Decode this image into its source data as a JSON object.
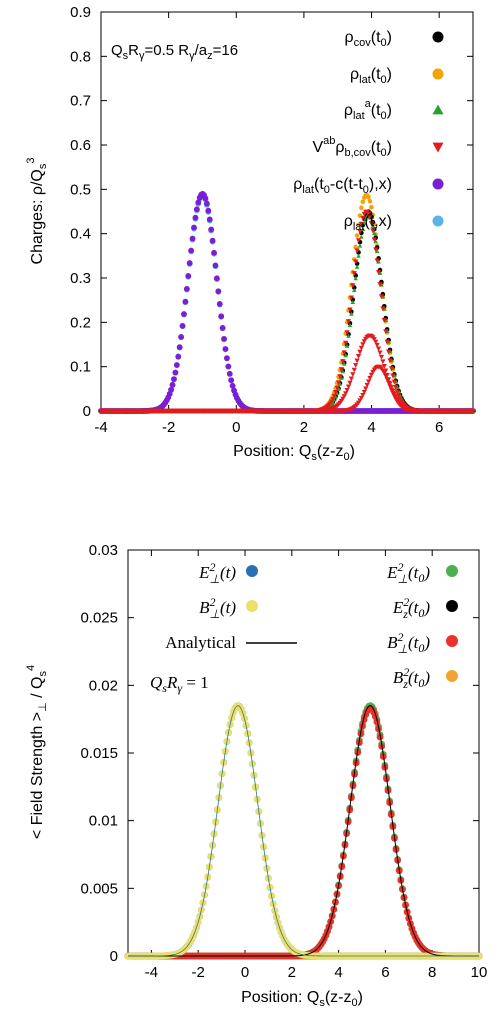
{
  "chart_data": [
    {
      "type": "scatter",
      "ylabel_main": "Charges: ρ/Q",
      "ylabel_sub": "s",
      "ylabel_sup": "3",
      "xlabel_main": "Position: Q",
      "xlabel_sub1": "s",
      "xlabel_mid": "(z-z",
      "xlabel_sub2": "0",
      "xlabel_end": ")",
      "xlim": [
        -4,
        7
      ],
      "ylim": [
        0,
        0.9
      ],
      "xticks": [
        "-4",
        "-2",
        "0",
        "2",
        "4",
        "6"
      ],
      "yticks": [
        "0",
        "0.1",
        "0.2",
        "0.3",
        "0.4",
        "0.5",
        "0.6",
        "0.7",
        "0.8",
        "0.9"
      ],
      "annotation": {
        "p1": "Q",
        "p1s": "s",
        "p2": "R",
        "p2s": "γ",
        "p3": "=0.5   R",
        "p3s": "γ",
        "p4": "/a",
        "p4s": "z",
        "p5": "=16"
      },
      "legend_position": "top-right",
      "series": [
        {
          "name": "ρcov(t0)",
          "color": "#000000",
          "marker": "circle",
          "center": 3.9,
          "amplitude": 0.45,
          "sigma": 0.42
        },
        {
          "name": "ρlat(t0)",
          "color": "#f5a300",
          "marker": "circle",
          "center": 3.85,
          "amplitude": 0.487,
          "sigma": 0.43
        },
        {
          "name": "ρlat^a(t0)",
          "color": "#2ca02c",
          "marker": "triangle-up",
          "center": 3.9,
          "amplitude": 0.44,
          "sigma": 0.42
        },
        {
          "name": "V^ab ρb,cov(t0)",
          "color": "#e41a1c",
          "marker": "triangle-down",
          "components": [
            [
              3.85,
              0.45,
              0.42
            ],
            [
              3.95,
              0.17,
              0.42
            ],
            [
              4.2,
              0.1,
              0.32
            ]
          ]
        },
        {
          "name": "ρlat(t0-c(t-t0),x)",
          "color": "#7b1fd6",
          "marker": "circle",
          "center": -1.0,
          "amplitude": 0.49,
          "sigma": 0.43
        },
        {
          "name": "ρlat(t,x)",
          "color": "#5ab4e5",
          "marker": "circle",
          "center": -1.0,
          "amplitude": 0.487,
          "sigma": 0.43
        }
      ]
    },
    {
      "type": "scatter",
      "ylabel": "< Field Strength >",
      "ylabel_sub": "⊥",
      "ylabel_mid": " / Q",
      "ylabel_sub2": "s",
      "ylabel_sup": "4",
      "xlabel_main": "Position: Q",
      "xlabel_sub1": "s",
      "xlabel_mid": "(z-z",
      "xlabel_sub2": "0",
      "xlabel_end": ")",
      "xlim": [
        -5,
        10
      ],
      "ylim": [
        0,
        0.03
      ],
      "xticks": [
        "-4",
        "-2",
        "0",
        "2",
        "4",
        "6",
        "8",
        "10"
      ],
      "yticks": [
        "0",
        "0.005",
        "0.01",
        "0.015",
        "0.02",
        "0.025",
        "0.03"
      ],
      "annotation_text": "Analytical",
      "annotation_eq": "QsRγ = 1",
      "legend_position": "top",
      "series": [
        {
          "name": "E⊥²(t)",
          "color": "#2b6fb3",
          "marker": "circle",
          "center": -0.3,
          "amplitude": 0.0185,
          "sigma": 0.85
        },
        {
          "name": "B⊥²(t)",
          "color": "#ece06a",
          "marker": "circle",
          "center": -0.3,
          "amplitude": 0.0185,
          "sigma": 0.85
        },
        {
          "name": "E⊥²(t0)",
          "color": "#4caf50",
          "marker": "circle",
          "center": 5.35,
          "amplitude": 0.0185,
          "sigma": 0.85
        },
        {
          "name": "Ez²(t0)",
          "color": "#000000",
          "marker": "circle",
          "center": 5.35,
          "amplitude": 0.0,
          "sigma": 0.85
        },
        {
          "name": "B⊥²(t0)",
          "color": "#e8322a",
          "marker": "circle",
          "center": 5.35,
          "amplitude": 0.0183,
          "sigma": 0.85
        },
        {
          "name": "Bz²(t0)",
          "color": "#f5a330",
          "marker": "circle",
          "center": 5.35,
          "amplitude": 0.0,
          "sigma": 0.85
        },
        {
          "name": "Analytical",
          "color": "#000000",
          "marker": "line",
          "center": 5.35,
          "amplitude": 0.0185,
          "sigma": 0.85
        }
      ]
    }
  ]
}
